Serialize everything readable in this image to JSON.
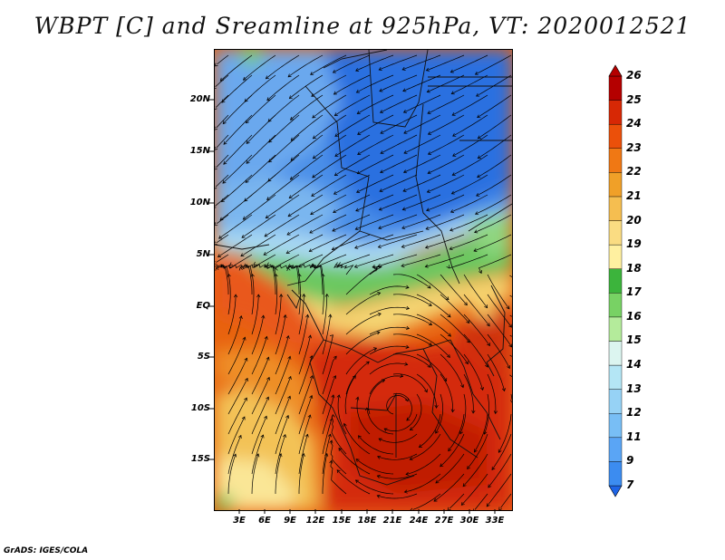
{
  "title": "WBPT [C] and Sreamline at 925hPa, VT: 2020012521",
  "footer": "GrADS: IGES/COLA",
  "chart_data": {
    "type": "heatmap",
    "title": "WBPT [C] and Sreamline at 925hPa, VT: 2020012521",
    "variable": "WBPT [C]",
    "level": "925hPa",
    "valid_time": "2020012521",
    "lat_ticks": [
      "20N",
      "15N",
      "10N",
      "5N",
      "EQ",
      "5S",
      "10S",
      "15S"
    ],
    "lat_values": [
      20,
      15,
      10,
      5,
      0,
      -5,
      -10,
      -15
    ],
    "lon_ticks": [
      "3E",
      "6E",
      "9E",
      "12E",
      "15E",
      "18E",
      "21E",
      "24E",
      "27E",
      "30E",
      "33E"
    ],
    "lon_values": [
      3,
      6,
      9,
      12,
      15,
      18,
      21,
      24,
      27,
      30,
      33
    ],
    "lat_range": [
      -19.5,
      25
    ],
    "lon_range": [
      0,
      35
    ],
    "colorbar": {
      "labels": [
        "7",
        "9",
        "11",
        "12",
        "13",
        "14",
        "15",
        "16",
        "17",
        "18",
        "19",
        "20",
        "21",
        "22",
        "23",
        "24",
        "25",
        "26"
      ],
      "colors": [
        "#1e64e6",
        "#3c8cf0",
        "#5aa5f5",
        "#78bef5",
        "#96d2f5",
        "#b4e6f5",
        "#dcf5f0",
        "#b4eb9b",
        "#78d264",
        "#3cb43c",
        "#fff0a0",
        "#fadc82",
        "#f5be50",
        "#f0a028",
        "#f07814",
        "#eb500a",
        "#d72805",
        "#b40000"
      ],
      "below_color": "#1e64e6",
      "above_color": "#b40000"
    }
  }
}
